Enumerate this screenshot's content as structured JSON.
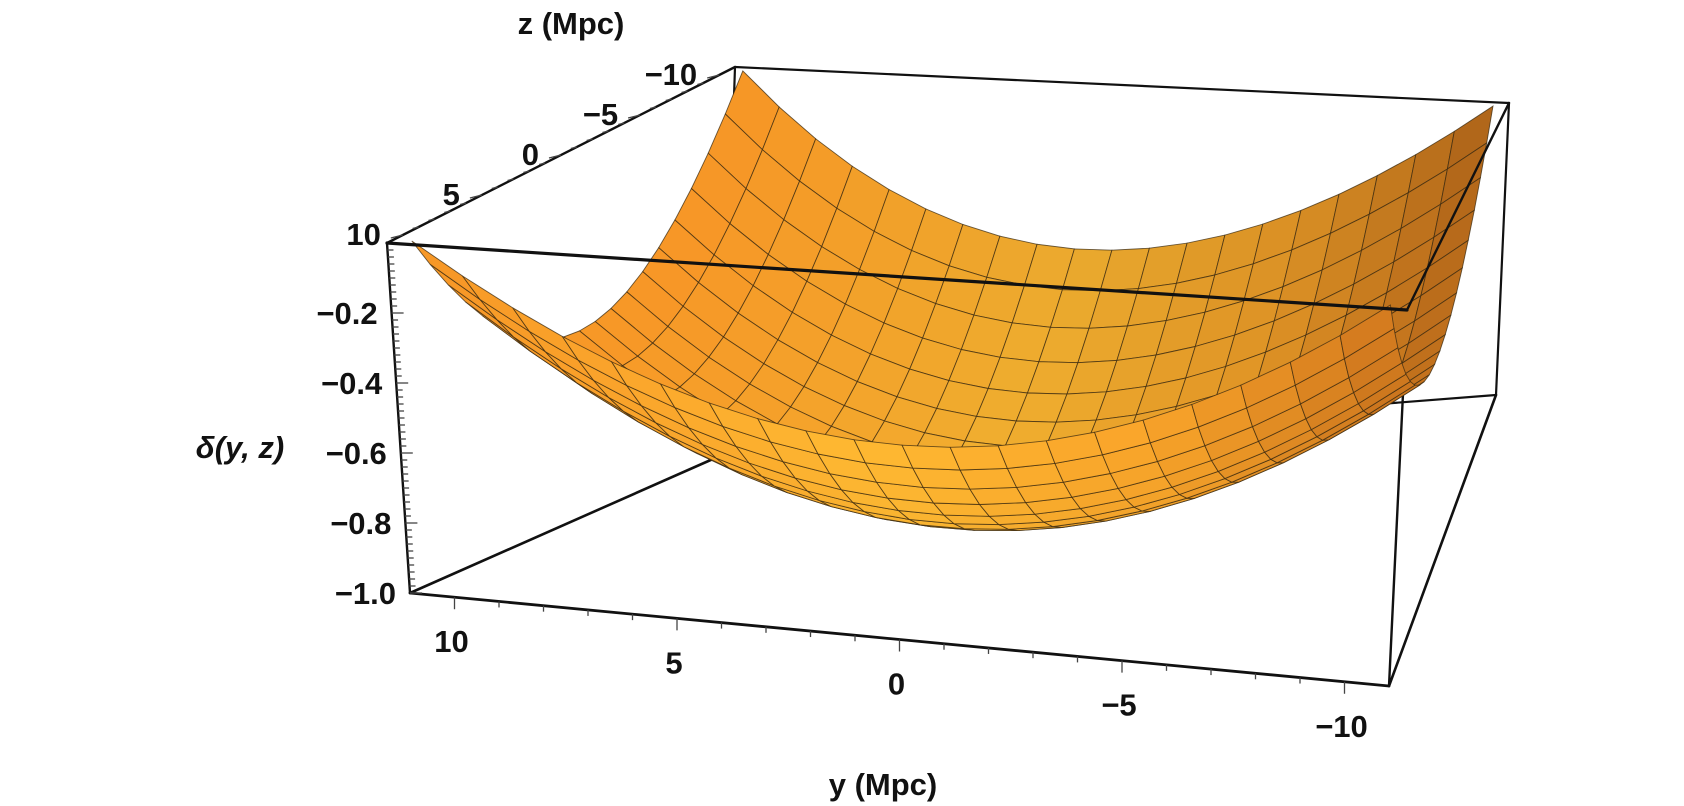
{
  "chart_data": {
    "type": "surface3d",
    "title": "",
    "xlabel": "y (Mpc)",
    "ylabel": "z (Mpc)",
    "zlabel": "δ(y, z)",
    "y_range": [
      -11,
      11
    ],
    "z_range": [
      -11,
      11
    ],
    "delta_range": [
      -1.0,
      0.0
    ],
    "y_ticks": [
      "10",
      "5",
      "0",
      "−5",
      "−10"
    ],
    "y_tick_values": [
      10,
      5,
      0,
      -5,
      -10
    ],
    "z_ticks": [
      "−10",
      "−5",
      "0",
      "5",
      "10"
    ],
    "z_tick_values": [
      -10,
      -5,
      0,
      5,
      10
    ],
    "delta_ticks": [
      "−0.2",
      "−0.4",
      "−0.6",
      "−0.8",
      "−1.0"
    ],
    "delta_tick_values": [
      -0.2,
      -0.4,
      -0.6,
      -0.8,
      -1.0
    ],
    "surface": {
      "description": "paraboloid bowl, minimum at center",
      "min": -0.95,
      "corner_value": 0.0,
      "grid_lines_per_axis": 21
    },
    "colors": {
      "surface_light": "#ffc23a",
      "surface_mid": "#f7a128",
      "surface_dark": "#b0570e",
      "mesh": "#3a2a10",
      "box": "#111111"
    }
  }
}
